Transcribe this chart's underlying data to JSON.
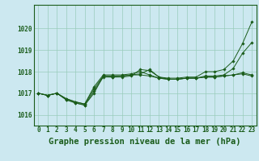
{
  "background_color": "#cce8f0",
  "plot_bg_color": "#cce8f0",
  "grid_color": "#99ccbb",
  "line_color": "#1a5c1a",
  "marker_color": "#1a5c1a",
  "xlabel": "Graphe pression niveau de la mer (hPa)",
  "xlabel_fontsize": 7.5,
  "tick_fontsize": 5.5,
  "xlim": [
    -0.5,
    23.5
  ],
  "ylim": [
    1015.5,
    1021.1
  ],
  "yticks": [
    1016,
    1017,
    1018,
    1019,
    1020
  ],
  "xticks": [
    0,
    1,
    2,
    3,
    4,
    5,
    6,
    7,
    8,
    9,
    10,
    11,
    12,
    13,
    14,
    15,
    16,
    17,
    18,
    19,
    20,
    21,
    22,
    23
  ],
  "series": [
    [
      1017.0,
      1016.9,
      1017.0,
      1016.7,
      1016.55,
      1016.45,
      1017.0,
      1017.8,
      1017.75,
      1017.8,
      1017.85,
      1017.9,
      1018.1,
      1017.75,
      1017.7,
      1017.7,
      1017.75,
      1017.75,
      1018.0,
      1018.0,
      1018.1,
      1018.5,
      1019.3,
      1020.3
    ],
    [
      1017.0,
      1016.9,
      1017.0,
      1016.7,
      1016.55,
      1016.45,
      1017.1,
      1017.75,
      1017.75,
      1017.75,
      1017.8,
      1018.1,
      1018.05,
      1017.75,
      1017.65,
      1017.65,
      1017.7,
      1017.7,
      1017.8,
      1017.8,
      1017.85,
      1018.15,
      1018.85,
      1019.35
    ],
    [
      1017.0,
      1016.9,
      1017.0,
      1016.75,
      1016.6,
      1016.5,
      1017.2,
      1017.8,
      1017.8,
      1017.8,
      1017.85,
      1017.85,
      1017.8,
      1017.7,
      1017.65,
      1017.65,
      1017.7,
      1017.7,
      1017.75,
      1017.75,
      1017.8,
      1017.85,
      1017.9,
      1017.8
    ],
    [
      1017.0,
      1016.9,
      1017.0,
      1016.75,
      1016.6,
      1016.5,
      1017.3,
      1017.85,
      1017.85,
      1017.85,
      1017.9,
      1018.0,
      1017.85,
      1017.7,
      1017.65,
      1017.65,
      1017.7,
      1017.7,
      1017.75,
      1017.75,
      1017.8,
      1017.85,
      1017.95,
      1017.85
    ]
  ]
}
